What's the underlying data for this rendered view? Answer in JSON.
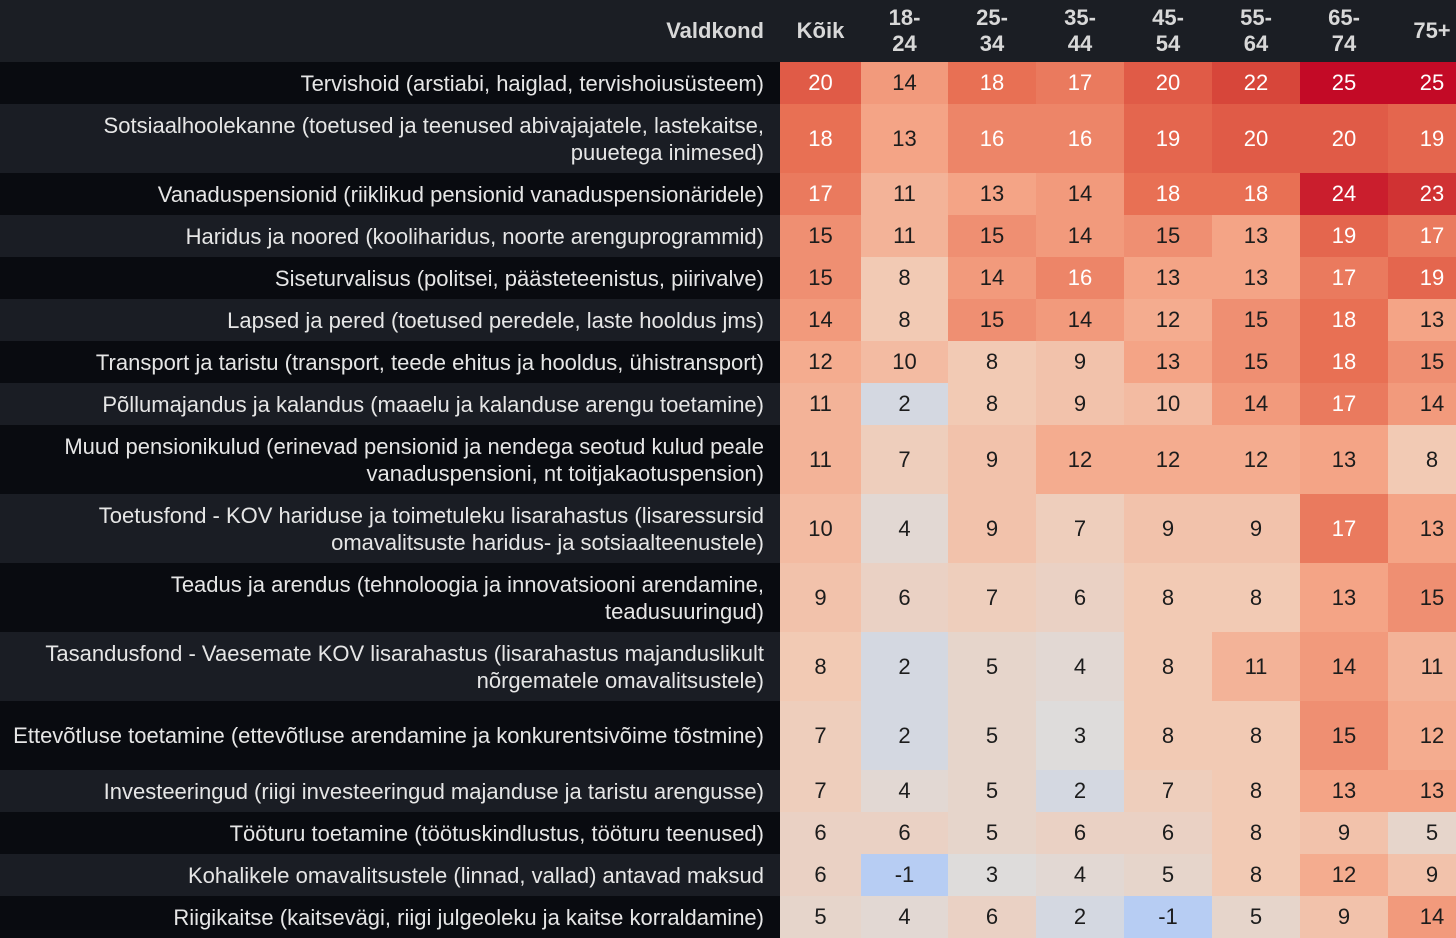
{
  "chart_data": {
    "type": "heatmap",
    "row_header": "Valdkond",
    "columns": [
      "Kõik",
      "18-\n24",
      "25-\n34",
      "35-\n44",
      "45-\n54",
      "55-\n64",
      "65-\n74",
      "75+"
    ],
    "rows": [
      {
        "label": "Tervishoid (arstiabi, haiglad, tervishoiusüsteem)",
        "values": [
          20,
          14,
          18,
          17,
          20,
          22,
          25,
          25
        ]
      },
      {
        "label": "Sotsiaalhoolekanne (toetused ja teenused abivajajatele, lastekaitse, puuetega inimesed)",
        "values": [
          18,
          13,
          16,
          16,
          19,
          20,
          20,
          19
        ]
      },
      {
        "label": "Vanaduspensionid (riiklikud pensionid vanaduspensionäridele)",
        "values": [
          17,
          11,
          13,
          14,
          18,
          18,
          24,
          23
        ]
      },
      {
        "label": "Haridus ja noored (kooliharidus, noorte arenguprogrammid)",
        "values": [
          15,
          11,
          15,
          14,
          15,
          13,
          19,
          17
        ]
      },
      {
        "label": "Siseturvalisus (politsei, päästeteenistus, piirivalve)",
        "values": [
          15,
          8,
          14,
          16,
          13,
          13,
          17,
          19
        ]
      },
      {
        "label": "Lapsed ja pered (toetused peredele, laste hooldus jms)",
        "values": [
          14,
          8,
          15,
          14,
          12,
          15,
          18,
          13
        ]
      },
      {
        "label": "Transport ja taristu (transport, teede ehitus ja hooldus, ühistransport)",
        "values": [
          12,
          10,
          8,
          9,
          13,
          15,
          18,
          15
        ]
      },
      {
        "label": "Põllumajandus ja kalandus (maaelu ja kalanduse arengu toetamine)",
        "values": [
          11,
          2,
          8,
          9,
          10,
          14,
          17,
          14
        ]
      },
      {
        "label": "Muud pensionikulud (erinevad pensionid ja nendega seotud kulud peale vanaduspensioni, nt toitjakaotuspension)",
        "values": [
          11,
          7,
          9,
          12,
          12,
          12,
          13,
          8
        ]
      },
      {
        "label": "Toetusfond - KOV hariduse ja toimetuleku lisarahastus (lisaressursid omavalitsuste haridus- ja sotsiaalteenustele)",
        "values": [
          10,
          4,
          9,
          7,
          9,
          9,
          17,
          13
        ]
      },
      {
        "label": "Teadus ja arendus (tehnoloogia ja innovatsiooni arendamine, teadusuuringud)",
        "values": [
          9,
          6,
          7,
          6,
          8,
          8,
          13,
          15
        ]
      },
      {
        "label": "Tasandusfond - Vaesemate KOV lisarahastus (lisarahastus majanduslikult nõrgematele omavalitsustele)",
        "values": [
          8,
          2,
          5,
          4,
          8,
          11,
          14,
          11
        ]
      },
      {
        "label": "Ettevõtluse toetamine (ettevõtluse arendamine ja konkurentsivõime tõstmine)",
        "values": [
          7,
          2,
          5,
          3,
          8,
          8,
          15,
          12
        ]
      },
      {
        "label": "Investeeringud (riigi investeeringud majanduse ja taristu arengusse)",
        "values": [
          7,
          4,
          5,
          2,
          7,
          8,
          13,
          13
        ]
      },
      {
        "label": "Tööturu toetamine (töötuskindlustus, tööturu teenused)",
        "values": [
          6,
          6,
          5,
          6,
          6,
          8,
          9,
          5
        ]
      },
      {
        "label": "Kohalikele omavalitsustele (linnad, vallad) antavad maksud",
        "values": [
          6,
          -1,
          3,
          4,
          5,
          8,
          12,
          9
        ]
      },
      {
        "label": "Riigikaitse (kaitsevägi, riigi julgeoleku ja kaitse korraldamine)",
        "values": [
          5,
          4,
          6,
          2,
          -1,
          5,
          9,
          14
        ]
      }
    ],
    "color_scale": {
      "low": "#b7cdf3",
      "mid": "#dedcdb",
      "high": "#c30a26",
      "min": -1,
      "mid_value": 3,
      "max": 25
    }
  }
}
